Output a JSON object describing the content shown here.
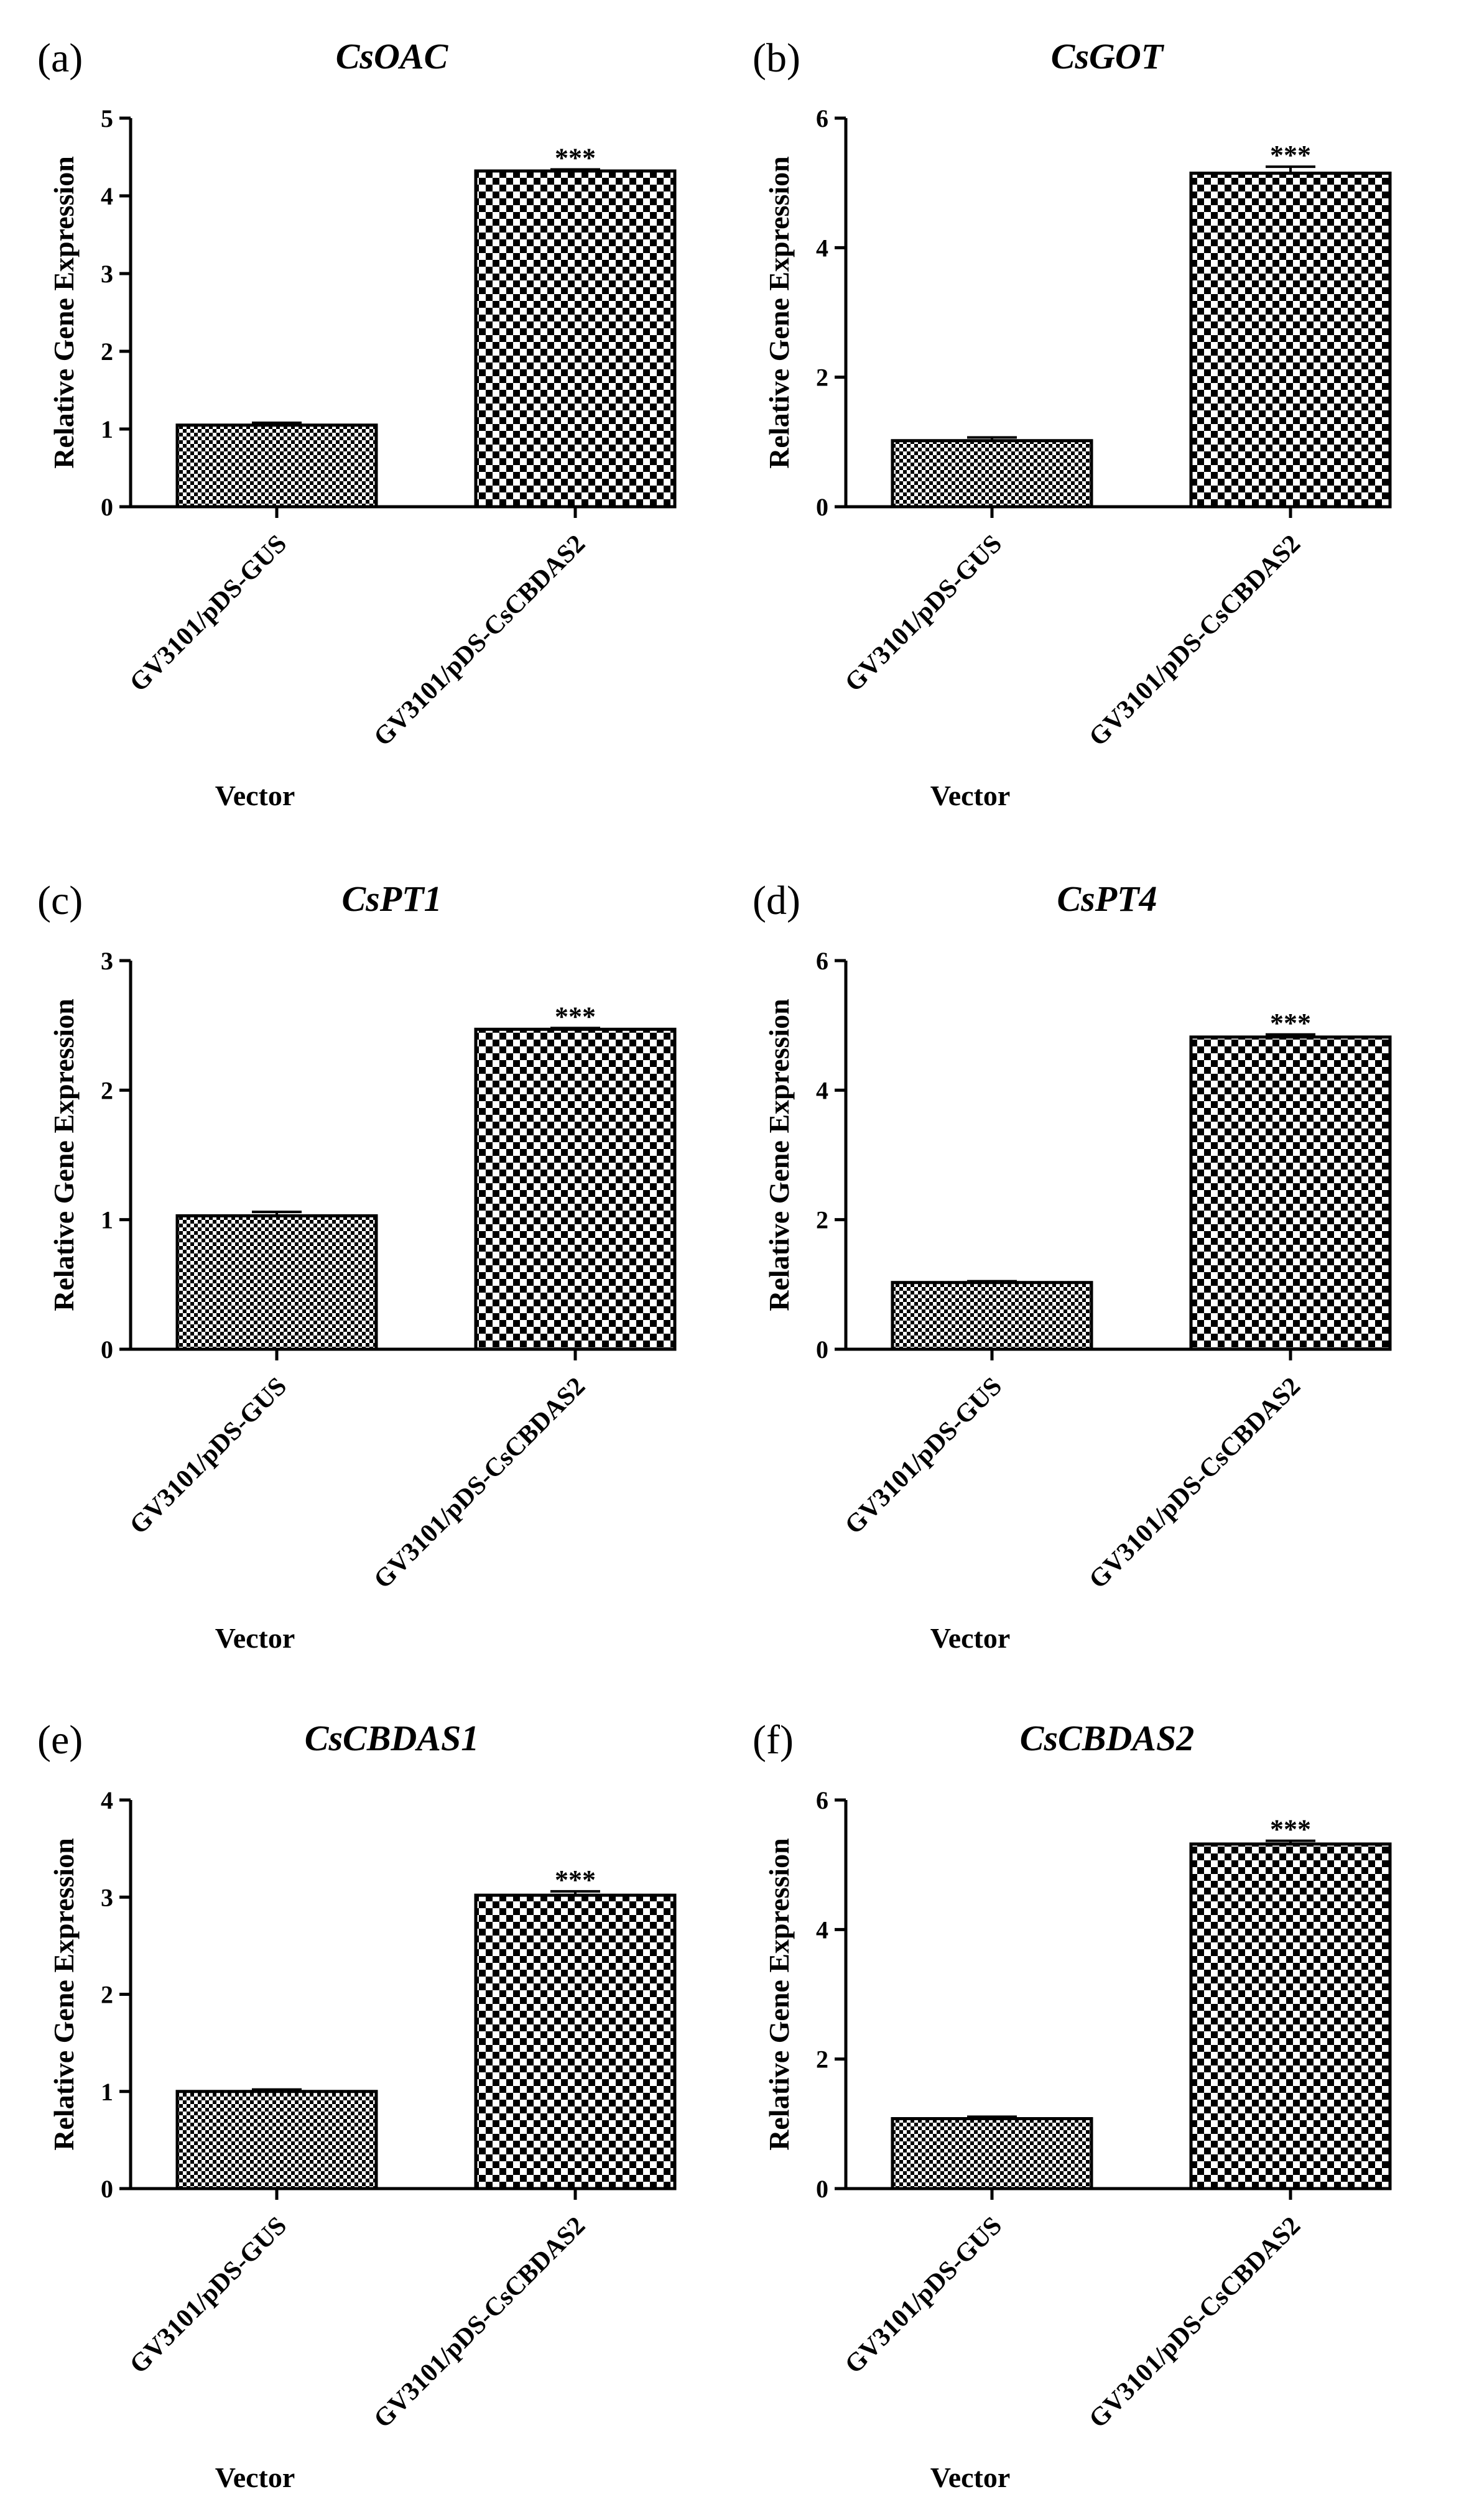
{
  "chart_data": [
    {
      "type": "bar",
      "panel": "(a)",
      "title": "CsOAC",
      "categories": [
        "GV3101/pDS-GUS",
        "GV3101/pDS-CsCBDAS2"
      ],
      "values": [
        1.05,
        4.32
      ],
      "errors": [
        0.03,
        0.02
      ],
      "annotations": [
        "",
        "***"
      ],
      "xlabel": "Vector",
      "ylabel": "Relative Gene Expression",
      "ylim": [
        0,
        5
      ],
      "yticks": [
        0,
        1,
        2,
        3,
        4,
        5
      ]
    },
    {
      "type": "bar",
      "panel": "(b)",
      "title": "CsGOT",
      "categories": [
        "GV3101/pDS-GUS",
        "GV3101/pDS-CsCBDAS2"
      ],
      "values": [
        1.02,
        5.15
      ],
      "errors": [
        0.05,
        0.1
      ],
      "annotations": [
        "",
        "***"
      ],
      "xlabel": "Vector",
      "ylabel": "Relative Gene Expression",
      "ylim": [
        0,
        6
      ],
      "yticks": [
        0,
        2,
        4,
        6
      ]
    },
    {
      "type": "bar",
      "panel": "(c)",
      "title": "CsPT1",
      "categories": [
        "GV3101/pDS-GUS",
        "GV3101/pDS-CsCBDAS2"
      ],
      "values": [
        1.03,
        2.47
      ],
      "errors": [
        0.03,
        0.01
      ],
      "annotations": [
        "",
        "***"
      ],
      "xlabel": "Vector",
      "ylabel": "Relative Gene Expression",
      "ylim": [
        0,
        3
      ],
      "yticks": [
        0,
        1,
        2,
        3
      ]
    },
    {
      "type": "bar",
      "panel": "(d)",
      "title": "CsPT4",
      "categories": [
        "GV3101/pDS-GUS",
        "GV3101/pDS-CsCBDAS2"
      ],
      "values": [
        1.03,
        4.82
      ],
      "errors": [
        0.02,
        0.04
      ],
      "annotations": [
        "",
        "***"
      ],
      "xlabel": "Vector",
      "ylabel": "Relative Gene Expression",
      "ylim": [
        0,
        6
      ],
      "yticks": [
        0,
        2,
        4,
        6
      ]
    },
    {
      "type": "bar",
      "panel": "(e)",
      "title": "CsCBDAS1",
      "categories": [
        "GV3101/pDS-GUS",
        "GV3101/pDS-CsCBDAS2"
      ],
      "values": [
        1.0,
        3.02
      ],
      "errors": [
        0.02,
        0.04
      ],
      "annotations": [
        "",
        "***"
      ],
      "xlabel": "Vector",
      "ylabel": "Relative Gene Expression",
      "ylim": [
        0,
        4
      ],
      "yticks": [
        0,
        1,
        2,
        3,
        4
      ]
    },
    {
      "type": "bar",
      "panel": "(f)",
      "title": "CsCBDAS2",
      "categories": [
        "GV3101/pDS-GUS",
        "GV3101/pDS-CsCBDAS2"
      ],
      "values": [
        1.08,
        5.32
      ],
      "errors": [
        0.03,
        0.05
      ],
      "annotations": [
        "",
        "***"
      ],
      "xlabel": "Vector",
      "ylabel": "Relative Gene Expression",
      "ylim": [
        0,
        6
      ],
      "yticks": [
        0,
        2,
        4,
        6
      ]
    }
  ]
}
